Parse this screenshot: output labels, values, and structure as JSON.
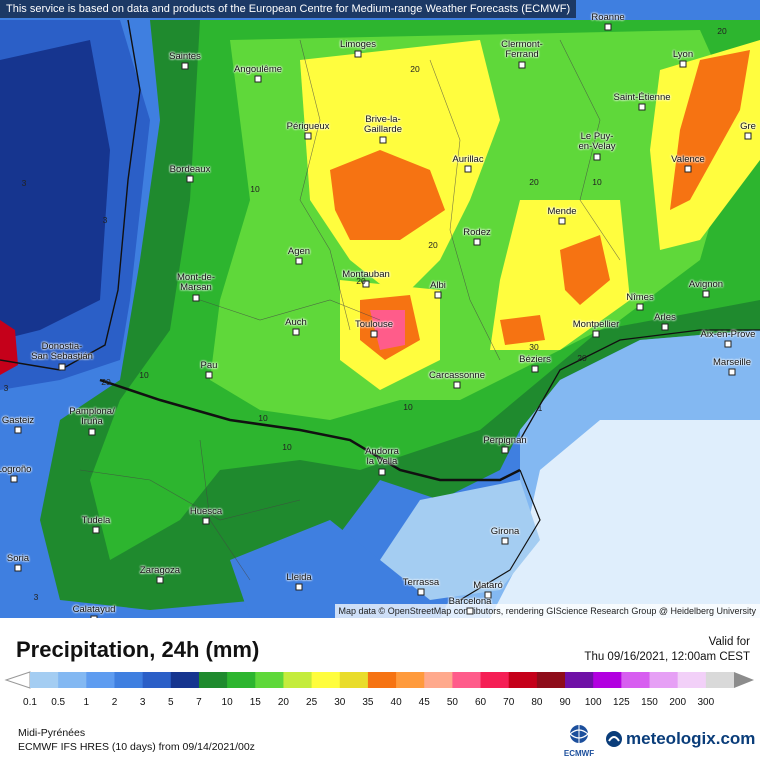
{
  "notice": "This service is based on data and products of the European Centre for Medium-range Weather Forecasts (ECMWF)",
  "attribution": "Map data © OpenStreetMap contributors, rendering GIScience Research Group @ Heidelberg University",
  "title": "Precipitation, 24h (mm)",
  "valid_label": "Valid for",
  "valid_time": "Thu 09/16/2021, 12:00am CEST",
  "region": "Midi-Pyrénées",
  "model": "ECMWF IFS HRES (10 days) from 09/14/2021/00z",
  "ecmwf_logo": "ECMWF",
  "brand": "meteologix.com",
  "legend": {
    "ticks": [
      "0.1",
      "0.5",
      "1",
      "2",
      "3",
      "5",
      "7",
      "10",
      "15",
      "20",
      "25",
      "30",
      "35",
      "40",
      "45",
      "50",
      "60",
      "70",
      "80",
      "90",
      "100",
      "125",
      "150",
      "200",
      "300"
    ],
    "colors": [
      "#a4cdf2",
      "#83b8f2",
      "#5e9cf0",
      "#3f7fe0",
      "#2b5fc7",
      "#16358f",
      "#1f8a2e",
      "#2db52f",
      "#5fd83a",
      "#c4ec3c",
      "#fffd3e",
      "#e9dc2a",
      "#f67312",
      "#ff9a3c",
      "#ffa98c",
      "#ff5c8a",
      "#f51f55",
      "#c5001a",
      "#8e0c1a",
      "#6f10a6",
      "#b200e0",
      "#d75ef0",
      "#e6a0f5",
      "#f2d0f8",
      "#d9d9d9"
    ]
  },
  "cities": [
    {
      "name": "Roanne"
    },
    {
      "name": "Saintes"
    },
    {
      "name": "Angoulême"
    },
    {
      "name": "Limoges"
    },
    {
      "name": "Clermont-\nFerrand"
    },
    {
      "name": "Lyon"
    },
    {
      "name": "Saint-Étienne"
    },
    {
      "name": "Brive-la-\nGaillarde"
    },
    {
      "name": "Périgueux"
    },
    {
      "name": "Le Puy-\nen-Velay"
    },
    {
      "name": "Bordeaux"
    },
    {
      "name": "Aurillac"
    },
    {
      "name": "Valence"
    },
    {
      "name": "Mende"
    },
    {
      "name": "Rodez"
    },
    {
      "name": "Agen"
    },
    {
      "name": "Montauban"
    },
    {
      "name": "Albi"
    },
    {
      "name": "Nîmes"
    },
    {
      "name": "Avignon"
    },
    {
      "name": "Mont-de-\nMarsan"
    },
    {
      "name": "Toulouse"
    },
    {
      "name": "Auch"
    },
    {
      "name": "Montpellier"
    },
    {
      "name": "Arles"
    },
    {
      "name": "Aix-en-Prove"
    },
    {
      "name": "Marseille"
    },
    {
      "name": "Béziers"
    },
    {
      "name": "Donostia-\nSan Sebastián"
    },
    {
      "name": "Pau"
    },
    {
      "name": "Carcassonne"
    },
    {
      "name": "Pamplona/\nIruña"
    },
    {
      "name": "Perpignan"
    },
    {
      "name": "Andorra\nla Vella"
    },
    {
      "name": "Gasteiz"
    },
    {
      "name": "Logroño"
    },
    {
      "name": "Tudela"
    },
    {
      "name": "Huesca"
    },
    {
      "name": "Girona"
    },
    {
      "name": "Soria"
    },
    {
      "name": "Zaragoza"
    },
    {
      "name": "Lleida"
    },
    {
      "name": "Terrassa"
    },
    {
      "name": "Mataró"
    },
    {
      "name": "Barcelona"
    },
    {
      "name": "Calatayud"
    },
    {
      "name": "Gre"
    }
  ],
  "isolines": [
    "20",
    "20",
    "3",
    "10",
    "3",
    "20",
    "20",
    "20",
    "30",
    "10",
    "20",
    "10",
    "10",
    "10",
    "1",
    "10",
    "3",
    "3",
    "20"
  ]
}
